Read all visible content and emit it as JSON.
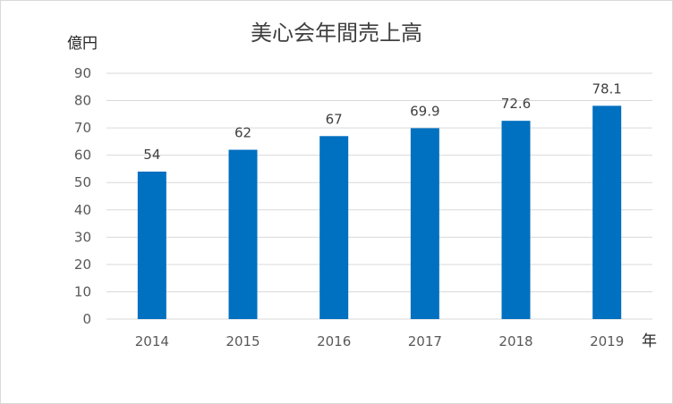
{
  "chart_data": {
    "type": "bar",
    "title": "美心会年間売上高",
    "ylabel": "億円",
    "xlabel": "年",
    "categories": [
      "2014",
      "2015",
      "2016",
      "2017",
      "2018",
      "2019"
    ],
    "values": [
      54,
      62,
      67,
      69.9,
      72.6,
      78.1
    ],
    "data_labels": [
      "54",
      "62",
      "67",
      "69.9",
      "72.6",
      "78.1"
    ],
    "ylim": [
      0,
      90
    ],
    "yticks": [
      "0",
      "10",
      "20",
      "30",
      "40",
      "50",
      "60",
      "70",
      "80",
      "90"
    ],
    "grid": true,
    "legend": "none",
    "bar_color": "#0070c0",
    "grid_color": "#d9d9d9"
  }
}
